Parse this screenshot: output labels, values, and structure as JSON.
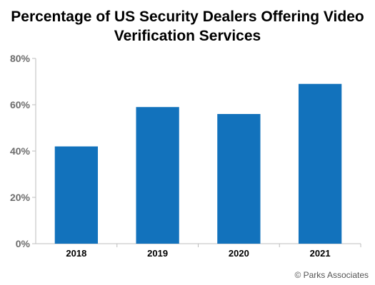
{
  "chart_data": {
    "type": "bar",
    "title_lines": [
      "Percentage of US Security Dealers Offering Video",
      "Verification Services"
    ],
    "categories": [
      "2018",
      "2019",
      "2020",
      "2021"
    ],
    "values": [
      42,
      59,
      56,
      69
    ],
    "ylim": [
      0,
      80
    ],
    "yticks": [
      0,
      20,
      40,
      60,
      80
    ],
    "ytick_labels": [
      "0%",
      "20%",
      "40%",
      "60%",
      "80%"
    ],
    "grid": false,
    "bar_color": "#1272bc",
    "axis_color": "#bdbdbd"
  },
  "source": "© Parks Associates"
}
